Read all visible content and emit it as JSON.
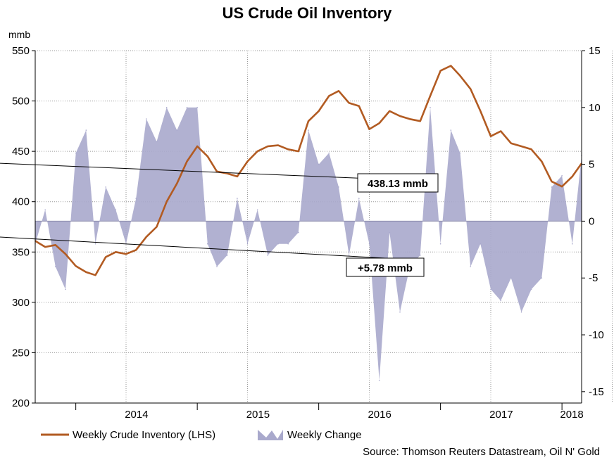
{
  "chart_data": {
    "type": "line",
    "title": "US Crude Oil Inventory",
    "left_axis": {
      "unit": "mmb",
      "ylim": [
        200,
        550
      ],
      "ticks": [
        200,
        250,
        300,
        350,
        400,
        450,
        500,
        550
      ]
    },
    "right_axis": {
      "ylim": [
        -16,
        15
      ],
      "ticks": [
        15,
        10,
        5,
        0,
        -5,
        -10,
        -15
      ]
    },
    "x_axis": {
      "tick_labels": [
        "2014",
        "2015",
        "2016",
        "2017",
        "2018"
      ],
      "range": [
        "2013-09",
        "2018-03"
      ]
    },
    "grid": true,
    "series": [
      {
        "name": "Weekly Crude Inventory (LHS)",
        "axis": "left",
        "style": "line",
        "color": "#b25b22",
        "x": [
          "2013-09-01",
          "2013-10-01",
          "2013-11-01",
          "2013-12-01",
          "2014-01-01",
          "2014-02-01",
          "2014-03-01",
          "2014-04-01",
          "2014-05-01",
          "2014-06-01",
          "2014-07-01",
          "2014-08-01",
          "2014-09-01",
          "2014-10-01",
          "2014-11-01",
          "2014-12-01",
          "2015-01-01",
          "2015-02-01",
          "2015-03-01",
          "2015-04-01",
          "2015-05-01",
          "2015-06-01",
          "2015-07-01",
          "2015-08-01",
          "2015-09-01",
          "2015-10-01",
          "2015-11-01",
          "2015-12-01",
          "2016-01-01",
          "2016-02-01",
          "2016-03-01",
          "2016-04-01",
          "2016-05-01",
          "2016-06-01",
          "2016-07-01",
          "2016-08-01",
          "2016-09-01",
          "2016-10-01",
          "2016-11-01",
          "2016-12-01",
          "2017-01-01",
          "2017-02-01",
          "2017-03-01",
          "2017-04-01",
          "2017-05-01",
          "2017-06-01",
          "2017-07-01",
          "2017-08-01",
          "2017-09-01",
          "2017-10-01",
          "2017-11-01",
          "2017-12-01",
          "2018-01-01",
          "2018-02-01",
          "2018-03-01"
        ],
        "values": [
          361,
          355,
          357,
          348,
          336,
          330,
          327,
          345,
          350,
          348,
          352,
          365,
          375,
          400,
          418,
          440,
          455,
          445,
          430,
          428,
          425,
          440,
          450,
          455,
          456,
          452,
          450,
          480,
          490,
          505,
          510,
          498,
          495,
          472,
          478,
          490,
          485,
          482,
          480,
          505,
          530,
          535,
          525,
          512,
          490,
          465,
          470,
          458,
          455,
          452,
          440,
          420,
          415,
          425,
          438
        ]
      },
      {
        "name": "Weekly Change",
        "axis": "right",
        "style": "area",
        "color": "#a9a9cc",
        "x": [
          "2013-09-01",
          "2013-10-01",
          "2013-11-01",
          "2013-12-01",
          "2014-01-01",
          "2014-02-01",
          "2014-03-01",
          "2014-04-01",
          "2014-05-01",
          "2014-06-01",
          "2014-07-01",
          "2014-08-01",
          "2014-09-01",
          "2014-10-01",
          "2014-11-01",
          "2014-12-01",
          "2015-01-01",
          "2015-02-01",
          "2015-03-01",
          "2015-04-01",
          "2015-05-01",
          "2015-06-01",
          "2015-07-01",
          "2015-08-01",
          "2015-09-01",
          "2015-10-01",
          "2015-11-01",
          "2015-12-01",
          "2016-01-01",
          "2016-02-01",
          "2016-03-01",
          "2016-04-01",
          "2016-05-01",
          "2016-06-01",
          "2016-07-01",
          "2016-08-01",
          "2016-09-01",
          "2016-10-01",
          "2016-11-01",
          "2016-12-01",
          "2017-01-01",
          "2017-02-01",
          "2017-03-01",
          "2017-04-01",
          "2017-05-01",
          "2017-06-01",
          "2017-07-01",
          "2017-08-01",
          "2017-09-01",
          "2017-10-01",
          "2017-11-01",
          "2017-12-01",
          "2018-01-01",
          "2018-02-01",
          "2018-03-01"
        ],
        "values": [
          -2,
          1,
          -4,
          -6,
          6,
          8,
          -2,
          3,
          1,
          -2,
          2,
          9,
          7,
          10,
          8,
          10,
          10,
          -2,
          -4,
          -3,
          2,
          -2,
          1,
          -3,
          -2,
          -2,
          -1,
          8,
          5,
          6,
          3,
          -3,
          2,
          -2,
          -14,
          -1,
          -8,
          -4,
          -3,
          10,
          -2,
          8,
          6,
          -4,
          -2,
          -6,
          -7,
          -5,
          -8,
          -6,
          -5,
          3,
          4,
          -2,
          5.78
        ]
      }
    ],
    "annotations": [
      {
        "text": "438.13 mmb",
        "x": "2018-03-01",
        "y": 438.13,
        "axis": "left"
      },
      {
        "text": "+5.78 mmb",
        "x": "2018-03-01",
        "y": -1.4,
        "axis": "right"
      }
    ],
    "legend": {
      "position": "bottom-left"
    },
    "source": "Source: Thomson Reuters Datastream, Oil N' Gold"
  }
}
